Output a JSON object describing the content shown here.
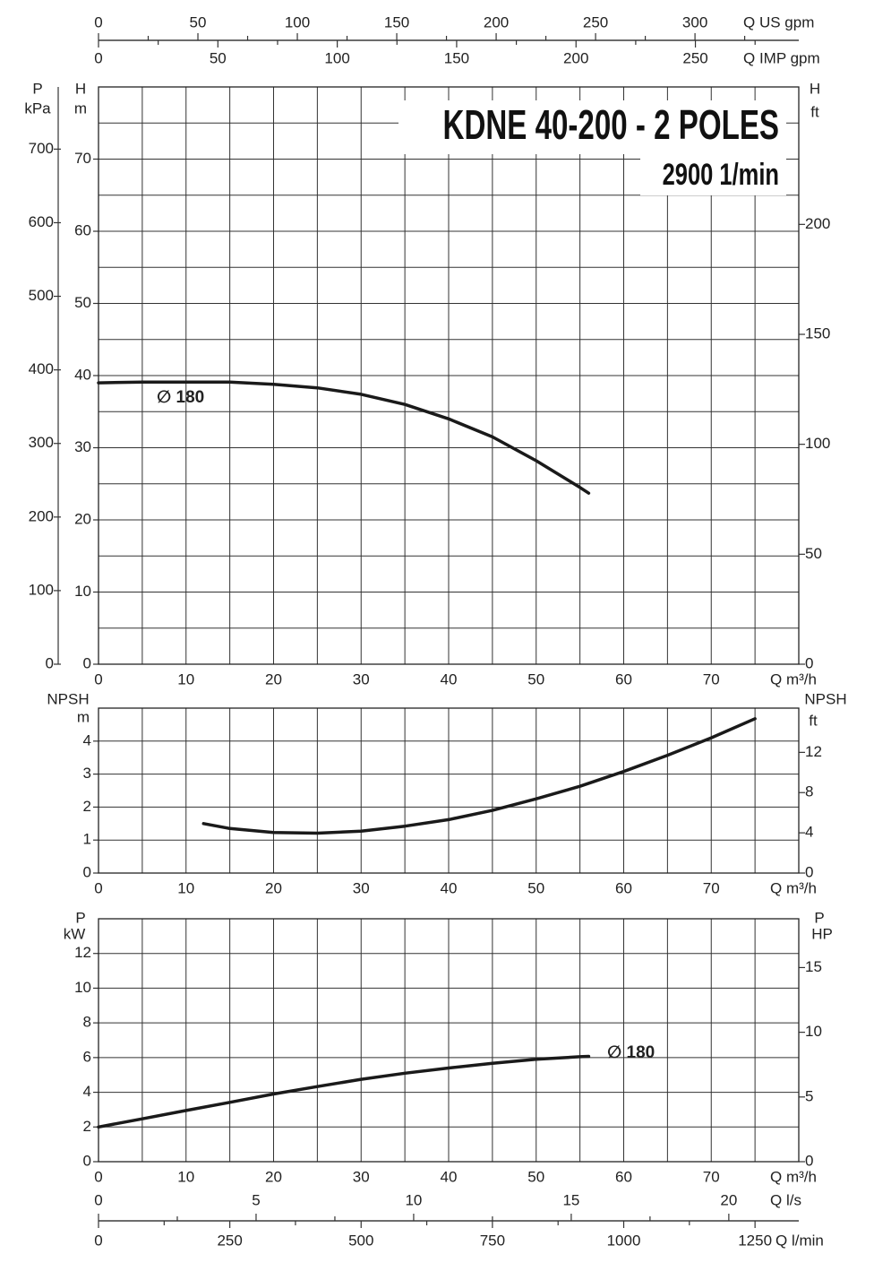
{
  "chart_data": [
    {
      "type": "line",
      "title": "KDNE 40-200 - 2 POLES",
      "subtitle": "2900 1/min",
      "x": [
        0,
        5,
        10,
        15,
        20,
        25,
        30,
        35,
        40,
        45,
        50,
        55,
        56
      ],
      "series": [
        {
          "name": "∅ 180",
          "color": "#1a1a1a",
          "values": [
            39,
            39.1,
            39.1,
            39.1,
            38.8,
            38.3,
            37.4,
            36,
            34,
            31.5,
            28.2,
            24.5,
            23.7
          ]
        }
      ],
      "xlabel": "Q m³/h",
      "xlim": [
        0,
        80
      ],
      "xticks": [
        0,
        10,
        20,
        30,
        40,
        50,
        60,
        70
      ],
      "ylabel": [
        "H",
        "m"
      ],
      "ylim": [
        0,
        80
      ],
      "yticks": [
        0,
        10,
        20,
        30,
        40,
        50,
        60,
        70
      ],
      "y2label": [
        "H",
        "ft"
      ],
      "y2lim": [
        0,
        262.5
      ],
      "y2ticks": [
        0,
        50,
        100,
        150,
        200
      ],
      "grid": true,
      "extra_axes": [
        {
          "label": [
            "P",
            "kPa"
          ],
          "side": "left",
          "lim": [
            0,
            784.5
          ],
          "ticks": [
            0,
            100,
            200,
            300,
            400,
            500,
            600,
            700
          ]
        },
        {
          "label": "Q US gpm",
          "side": "top",
          "lim": [
            0,
            352.2
          ],
          "ticks": [
            0,
            50,
            100,
            150,
            200,
            250,
            300
          ]
        },
        {
          "label": "Q IMP gpm",
          "side": "top",
          "lim": [
            0,
            293.3
          ],
          "ticks": [
            0,
            50,
            100,
            150,
            200,
            250
          ]
        }
      ]
    },
    {
      "type": "line",
      "x": [
        12,
        15,
        20,
        25,
        30,
        35,
        40,
        45,
        50,
        55,
        60,
        65,
        70,
        75
      ],
      "series": [
        {
          "color": "#1a1a1a",
          "values": [
            1.5,
            1.35,
            1.23,
            1.21,
            1.27,
            1.42,
            1.62,
            1.9,
            2.25,
            2.63,
            3.08,
            3.57,
            4.1,
            4.68
          ]
        }
      ],
      "xlabel": "Q m³/h",
      "xlim": [
        0,
        80
      ],
      "xticks": [
        0,
        10,
        20,
        30,
        40,
        50,
        60,
        70
      ],
      "ylabel": [
        "NPSH",
        "m"
      ],
      "ylim": [
        0,
        5
      ],
      "yticks": [
        0,
        1,
        2,
        3,
        4
      ],
      "y2label": [
        "NPSH",
        "ft"
      ],
      "y2lim": [
        0,
        16.4
      ],
      "y2ticks": [
        0,
        4,
        8,
        12
      ],
      "grid": true
    },
    {
      "type": "line",
      "x": [
        0,
        5,
        10,
        15,
        20,
        25,
        30,
        35,
        40,
        45,
        50,
        55,
        56
      ],
      "series": [
        {
          "name": "∅ 180",
          "color": "#1a1a1a",
          "values": [
            2,
            2.47,
            2.95,
            3.42,
            3.9,
            4.33,
            4.75,
            5.1,
            5.4,
            5.67,
            5.9,
            6.05,
            6.07
          ]
        }
      ],
      "xlabel": "Q m³/h",
      "xlim": [
        0,
        80
      ],
      "xticks": [
        0,
        10,
        20,
        30,
        40,
        50,
        60,
        70
      ],
      "ylabel": [
        "P",
        "kW"
      ],
      "ylim": [
        0,
        14
      ],
      "yticks": [
        0,
        2,
        4,
        6,
        8,
        10,
        12
      ],
      "y2label": [
        "P",
        "HP"
      ],
      "y2lim": [
        0,
        18.77
      ],
      "y2ticks": [
        0,
        5,
        10,
        15
      ],
      "grid": true,
      "extra_axes": [
        {
          "label": "Q l/s",
          "side": "bottom",
          "lim": [
            0,
            22.22
          ],
          "ticks": [
            0,
            5,
            10,
            15,
            20
          ]
        },
        {
          "label": "Q l/min",
          "side": "bottom",
          "lim": [
            0,
            1333.3
          ],
          "ticks": [
            0,
            250,
            500,
            750,
            1000,
            1250
          ]
        }
      ]
    }
  ]
}
